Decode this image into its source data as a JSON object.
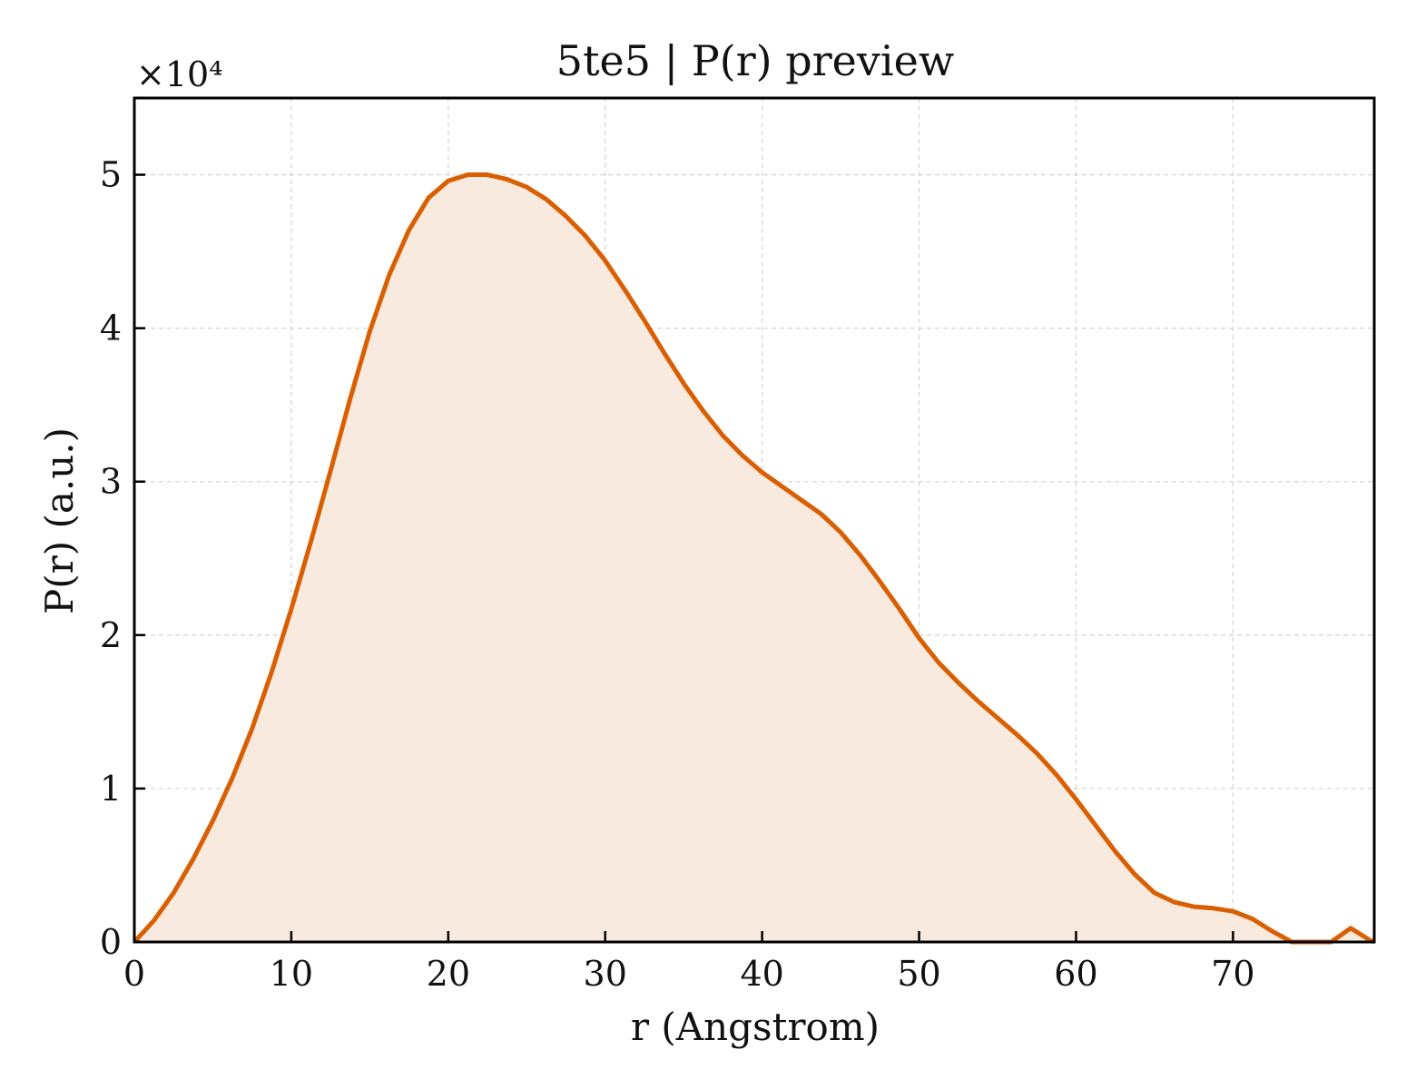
{
  "chart_data": {
    "type": "area",
    "title": "5te5 | P(r) preview",
    "xlabel": "r (Angstrom)",
    "ylabel": "P(r) (a.u.)",
    "y_scale_label": "×10⁴",
    "xlim": [
      0,
      79
    ],
    "ylim": [
      0,
      55000
    ],
    "xticks": [
      0,
      10,
      20,
      30,
      40,
      50,
      60,
      70
    ],
    "yticks": [
      0,
      10000,
      20000,
      30000,
      40000,
      50000
    ],
    "ytick_labels": [
      "0",
      "1",
      "2",
      "3",
      "4",
      "5"
    ],
    "grid": true,
    "line_color": "#d95f02",
    "fill_color": "#f9eadf",
    "series": [
      {
        "x": [
          0,
          1.25,
          2.5,
          3.75,
          5,
          6.25,
          7.5,
          8.75,
          10,
          11.25,
          12.5,
          13.75,
          15,
          16.25,
          17.5,
          18.75,
          20,
          21.25,
          22.5,
          23.75,
          25,
          26.25,
          27.5,
          28.75,
          30,
          31.25,
          32.5,
          33.75,
          35,
          36.25,
          37.5,
          38.75,
          40,
          41.25,
          42.5,
          43.75,
          45,
          46.25,
          47.5,
          48.75,
          50,
          51.25,
          52.5,
          53.75,
          55,
          56.25,
          57.5,
          58.75,
          60,
          61.25,
          62.5,
          63.75,
          65,
          66.25,
          67.5,
          68.75,
          70,
          71.25,
          72.5,
          73.75,
          75,
          76.25,
          77.5,
          78.75,
          79
        ],
        "y": [
          0,
          1400,
          3200,
          5400,
          7900,
          10700,
          13900,
          17600,
          21700,
          26100,
          30700,
          35400,
          39800,
          43500,
          46400,
          48500,
          49600,
          50000,
          50000,
          49700,
          49200,
          48400,
          47300,
          46000,
          44400,
          42500,
          40500,
          38400,
          36400,
          34600,
          33000,
          31700,
          30600,
          29700,
          28800,
          27900,
          26700,
          25200,
          23500,
          21700,
          19800,
          18200,
          16900,
          15700,
          14600,
          13500,
          12300,
          10900,
          9300,
          7600,
          5900,
          4400,
          3200,
          2600,
          2300,
          2200,
          2000,
          1500,
          700,
          0,
          0,
          0,
          900,
          100,
          0
        ]
      }
    ]
  }
}
